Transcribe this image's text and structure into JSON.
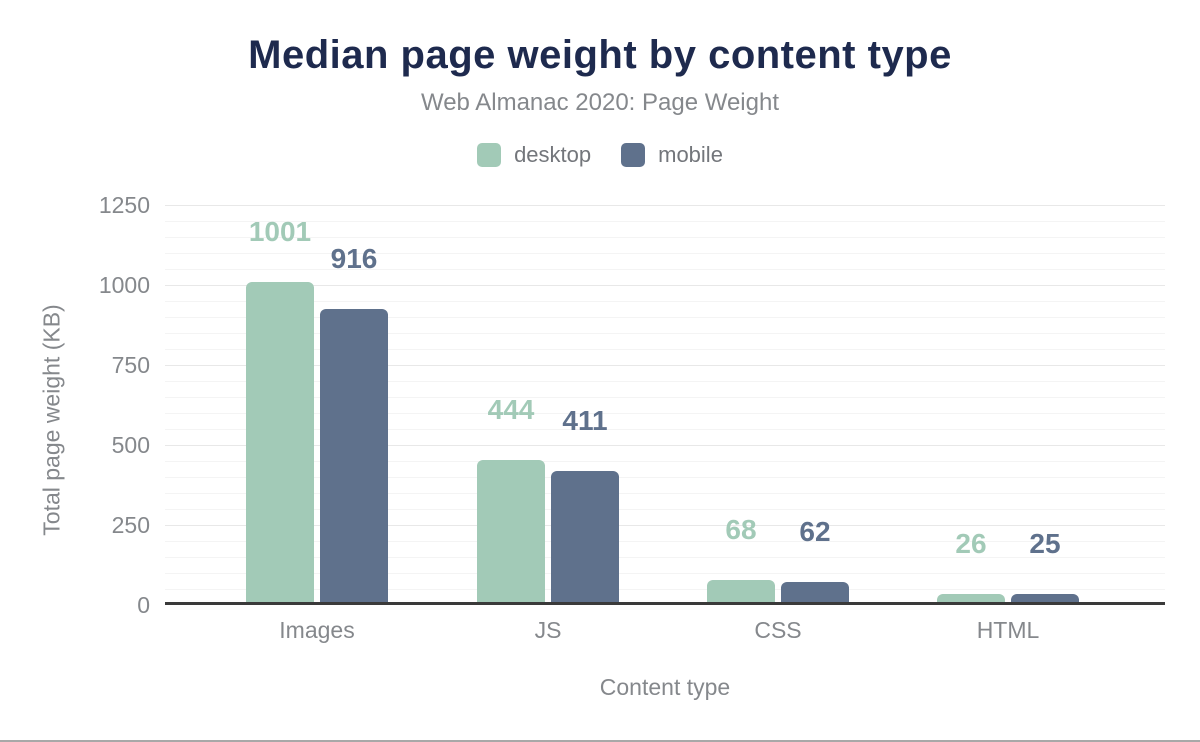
{
  "colors": {
    "navy": "#1e2a4e",
    "text-gray": "#85888c",
    "legend-gray": "#73767b",
    "grid-major": "#e8e8e8",
    "grid-minor": "#f4f4f4",
    "baseline": "#3a3a3a",
    "frame-border": "#a8a8a8",
    "background": "#ffffff"
  },
  "chart_data": {
    "type": "bar",
    "title": "Median page weight by content type",
    "subtitle": "Web Almanac 2020: Page Weight",
    "categories": [
      "Images",
      "JS",
      "CSS",
      "HTML"
    ],
    "series": [
      {
        "name": "desktop",
        "color": "#a2cab7",
        "values": [
          1001,
          444,
          68,
          26
        ]
      },
      {
        "name": "mobile",
        "color": "#5f718c",
        "values": [
          916,
          411,
          62,
          25
        ]
      }
    ],
    "xlabel": "Content type",
    "ylabel": "Total page weight (KB)",
    "ylim": [
      0,
      1250
    ],
    "yticks": [
      1250,
      1000,
      750,
      500,
      250,
      0
    ],
    "grid": "horizontal major every 250, minor every 50",
    "legend_position": "top",
    "value_labels": true
  }
}
